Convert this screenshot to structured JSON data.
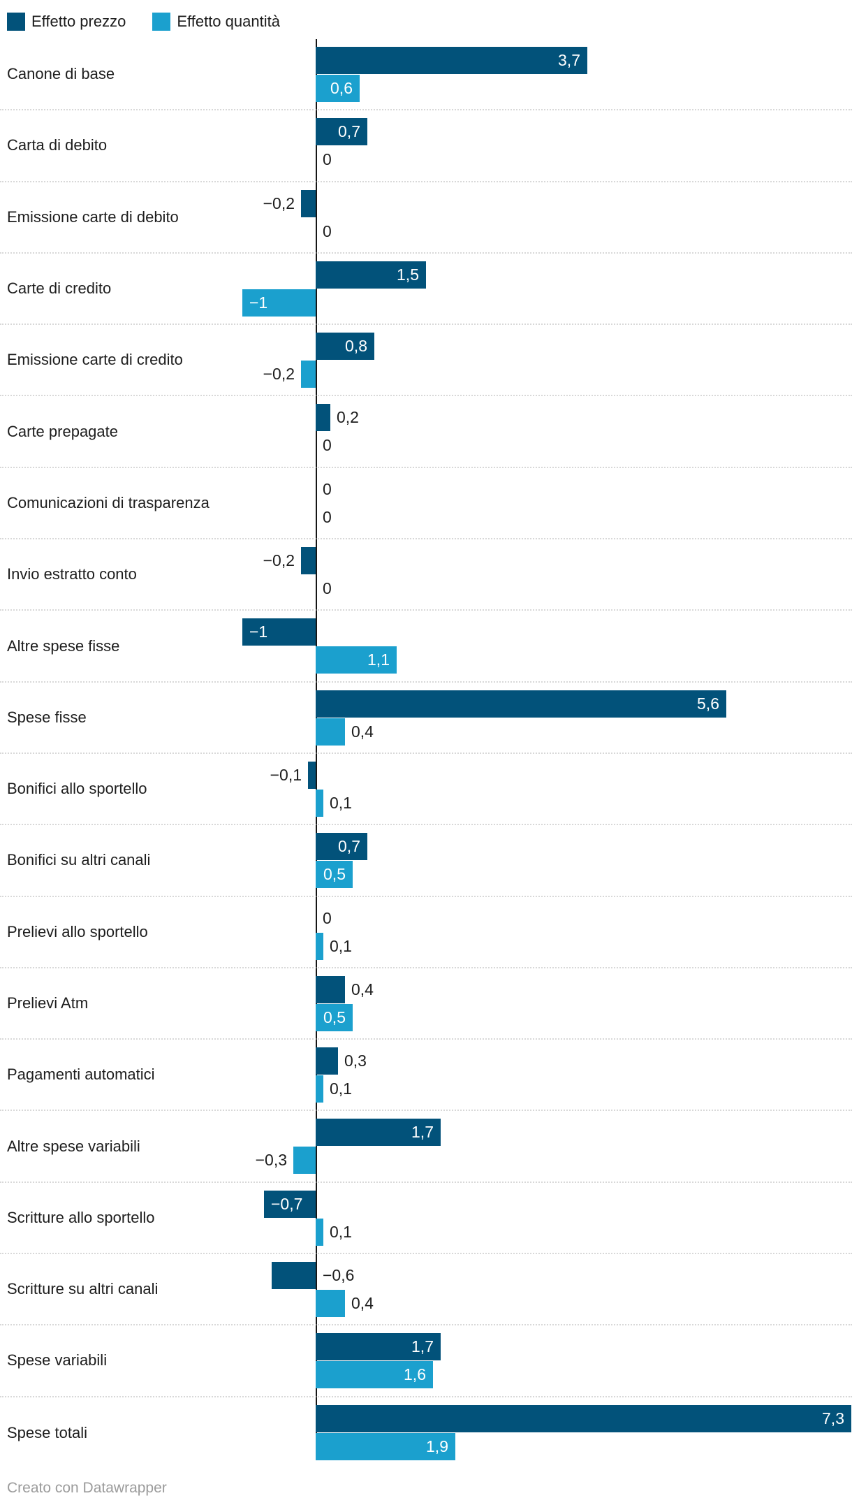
{
  "legend": {
    "items": [
      {
        "label": "Effetto prezzo",
        "color": "#02527a"
      },
      {
        "label": "Effetto quantità",
        "color": "#1ba0ce"
      }
    ]
  },
  "footer": {
    "text": "Creato con Datawrapper"
  },
  "chart_data": {
    "type": "bar",
    "orientation": "horizontal",
    "title": "",
    "xlabel": "",
    "ylabel": "",
    "xlim": [
      -1.1,
      7.35
    ],
    "grid": "dotted horizontal separators between categories",
    "legend_position": "top-left",
    "zero_axis_color": "#161616",
    "separator_color": "#d8d8d8",
    "categories": [
      "Canone di base",
      "Carta di debito",
      "Emissione carte di debito",
      "Carte di credito",
      "Emissione carte di credito",
      "Carte prepagate",
      "Comunicazioni di trasparenza",
      "Invio estratto conto",
      "Altre spese fisse",
      "Spese fisse",
      "Bonifici allo sportello",
      "Bonifici su altri canali",
      "Prelievi allo sportello",
      "Prelievi Atm",
      "Pagamenti automatici",
      "Altre spese variabili",
      "Scritture allo sportello",
      "Scritture su altri canali",
      "Spese variabili",
      "Spese totali"
    ],
    "series": [
      {
        "name": "Effetto prezzo",
        "color": "#02527a",
        "values": [
          3.7,
          0.7,
          -0.2,
          1.5,
          0.8,
          0.2,
          0,
          -0.2,
          -1,
          5.6,
          -0.1,
          0.7,
          0,
          0.4,
          0.3,
          1.7,
          -0.7,
          -0.6,
          1.7,
          7.3
        ],
        "labels": [
          "3,7",
          "0,7",
          "−0,2",
          "1,5",
          "0,8",
          "0,2",
          "0",
          "−0,2",
          "−1",
          "5,6",
          "−0,1",
          "0,7",
          "0",
          "0,4",
          "0,3",
          "1,7",
          "−0,7",
          "−0,6",
          "1,7",
          "7,3"
        ],
        "label_placements": [
          "inside",
          "inside",
          "outside",
          "inside",
          "inside",
          "outside",
          "zero",
          "outside",
          "inside",
          "inside",
          "outside",
          "inside",
          "zero",
          "outside",
          "outside",
          "inside",
          "inside",
          "axis-right",
          "inside",
          "inside"
        ]
      },
      {
        "name": "Effetto quantità",
        "color": "#1ba0ce",
        "values": [
          0.6,
          0,
          0,
          -1,
          -0.2,
          0,
          0,
          0,
          1.1,
          0.4,
          0.1,
          0.5,
          0.1,
          0.5,
          0.1,
          -0.3,
          0.1,
          0.4,
          1.6,
          1.9
        ],
        "labels": [
          "0,6",
          "0",
          "0",
          "−1",
          "−0,2",
          "0",
          "0",
          "0",
          "1,1",
          "0,4",
          "0,1",
          "0,5",
          "0,1",
          "0,5",
          "0,1",
          "−0,3",
          "0,1",
          "0,4",
          "1,6",
          "1,9"
        ],
        "label_placements": [
          "inside",
          "zero",
          "zero",
          "inside",
          "outside",
          "zero",
          "zero",
          "zero",
          "inside",
          "outside",
          "outside",
          "inside",
          "outside",
          "inside",
          "outside",
          "outside",
          "outside",
          "outside",
          "inside",
          "inside"
        ]
      }
    ]
  }
}
